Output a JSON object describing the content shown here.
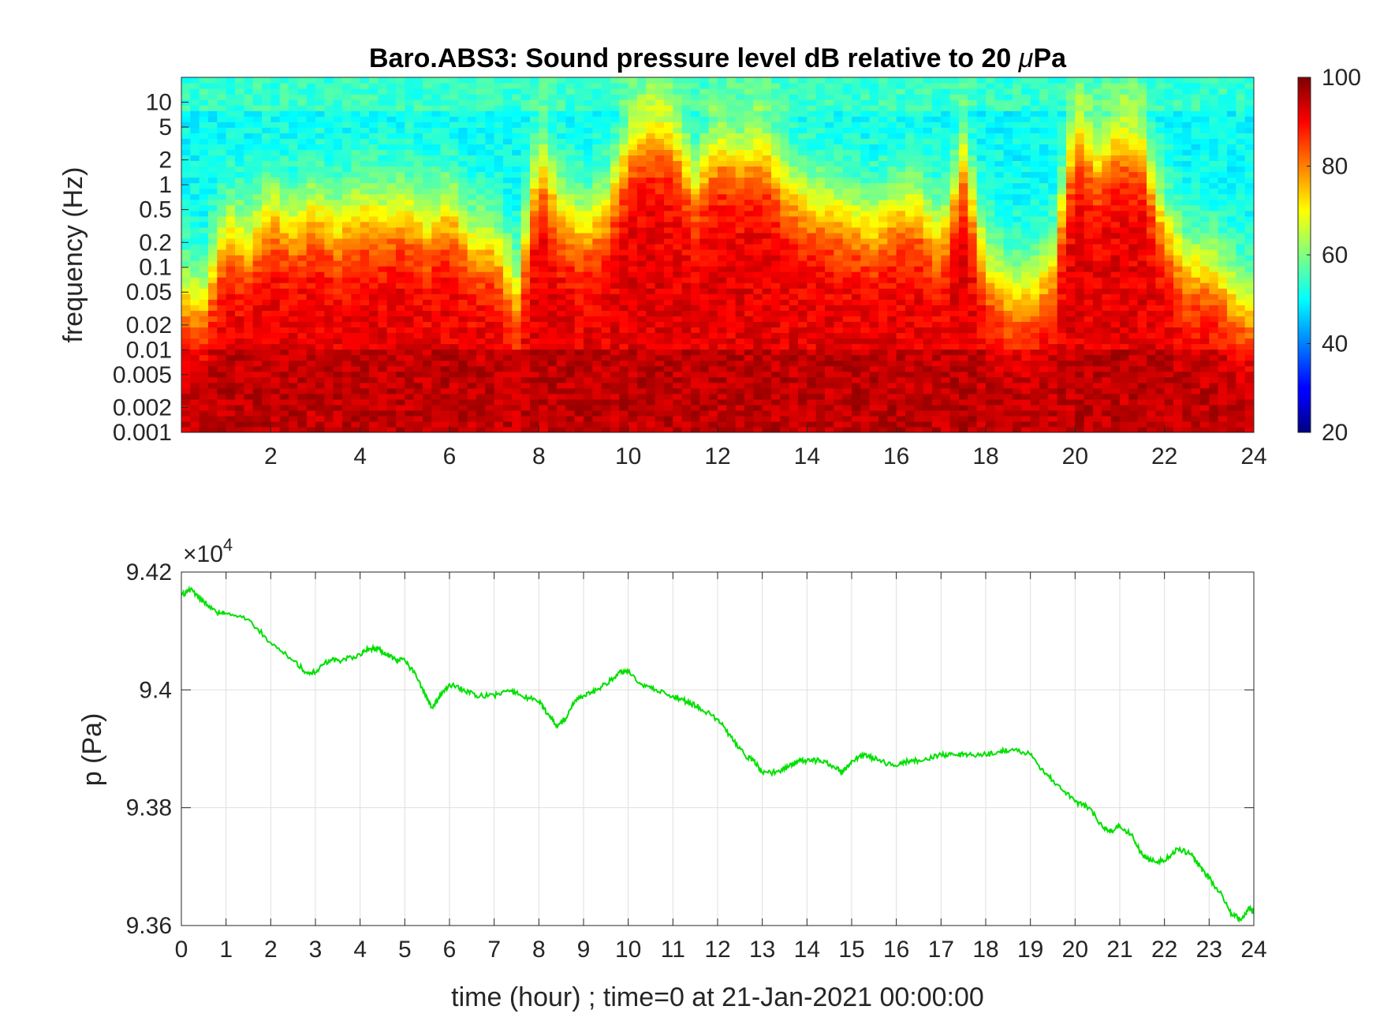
{
  "figure": {
    "title": "Baro.ABS3: Sound pressure level dB relative to 20 ",
    "title_mu": "μ",
    "title_unit": "Pa"
  },
  "chart_data": [
    {
      "type": "heatmap",
      "title": "Baro.ABS3: Sound pressure level dB relative to 20 μPa",
      "ylabel": "frequency (Hz)",
      "xlabel": "",
      "x_ticks": [
        "2",
        "4",
        "6",
        "8",
        "10",
        "12",
        "14",
        "16",
        "18",
        "20",
        "22",
        "24"
      ],
      "y_ticks": [
        "0.001",
        "0.002",
        "0.005",
        "0.01",
        "0.02",
        "0.05",
        "0.1",
        "0.2",
        "0.5",
        "1",
        "2",
        "5",
        "10"
      ],
      "xlim": [
        0,
        24
      ],
      "ylim": [
        0.001,
        20
      ],
      "y_scale": "log",
      "colormap": "jet",
      "colorbar": {
        "range": [
          20,
          100
        ],
        "ticks": [
          "20",
          "40",
          "60",
          "80",
          "100"
        ],
        "placement": "right"
      },
      "time_bins": [
        0,
        0.5,
        1,
        1.5,
        2,
        2.5,
        3,
        3.5,
        4,
        4.5,
        5,
        5.5,
        6,
        6.5,
        7,
        7.5,
        8,
        8.5,
        9,
        9.5,
        10,
        10.5,
        11,
        11.5,
        12,
        12.5,
        13,
        13.5,
        14,
        14.5,
        15,
        15.5,
        16,
        16.5,
        17,
        17.5,
        18,
        18.5,
        19,
        19.5,
        20,
        20.5,
        21,
        21.5,
        22,
        22.5,
        23,
        23.5,
        24
      ],
      "upper_freq_edge_hz": [
        0.05,
        0.04,
        0.3,
        0.2,
        0.5,
        0.3,
        0.5,
        0.3,
        0.5,
        0.4,
        0.5,
        0.3,
        0.5,
        0.2,
        0.2,
        0.05,
        2,
        0.5,
        0.3,
        0.5,
        3,
        5,
        4,
        1,
        3,
        2,
        3,
        1,
        0.6,
        0.5,
        0.4,
        0.3,
        0.5,
        0.5,
        0.2,
        2,
        0.1,
        0.05,
        0.05,
        0.1,
        5,
        2,
        4,
        3,
        0.3,
        0.1,
        0.1,
        0.05,
        0.03
      ],
      "low_band_level_db": 92,
      "high_band_level_db": 50,
      "grid": false
    },
    {
      "type": "line",
      "xlabel": "time (hour) ; time=0 at 21-Jan-2021 00:00:00",
      "ylabel": "p (Pa)",
      "y_multiplier": "×10",
      "y_multiplier_exp": "4",
      "x_ticks": [
        "0",
        "1",
        "2",
        "3",
        "4",
        "5",
        "6",
        "7",
        "8",
        "9",
        "10",
        "11",
        "12",
        "13",
        "14",
        "15",
        "16",
        "17",
        "18",
        "19",
        "20",
        "21",
        "22",
        "23",
        "24"
      ],
      "y_ticks": [
        "9.36",
        "9.38",
        "9.4",
        "9.42"
      ],
      "xlim": [
        0,
        24
      ],
      "ylim": [
        93600,
        94200
      ],
      "grid": true,
      "series": [
        {
          "color": "#00e000",
          "x": [
            0,
            0.2,
            0.5,
            0.8,
            1.0,
            1.5,
            2.0,
            2.5,
            2.8,
            3.0,
            3.3,
            3.6,
            4.0,
            4.2,
            4.4,
            4.6,
            4.8,
            5.0,
            5.2,
            5.4,
            5.6,
            5.8,
            6.0,
            6.3,
            6.6,
            7.0,
            7.3,
            7.6,
            8.0,
            8.2,
            8.4,
            8.6,
            8.8,
            9.0,
            9.2,
            9.5,
            9.8,
            10.0,
            10.3,
            10.6,
            11.0,
            11.3,
            11.6,
            12.0,
            12.3,
            12.6,
            12.8,
            13.0,
            13.3,
            13.6,
            13.8,
            14.0,
            14.3,
            14.6,
            14.8,
            15.0,
            15.3,
            15.6,
            16.0,
            16.3,
            16.6,
            17.0,
            17.3,
            17.6,
            18.0,
            18.3,
            18.6,
            19.0,
            19.3,
            19.6,
            20.0,
            20.3,
            20.6,
            20.8,
            21.0,
            21.3,
            21.5,
            21.7,
            22.0,
            22.3,
            22.6,
            22.8,
            23.0,
            23.3,
            23.5,
            23.7,
            23.9,
            24.0
          ],
          "y": [
            94160,
            94170,
            94150,
            94130,
            94130,
            94120,
            94080,
            94050,
            94030,
            94030,
            94050,
            94050,
            94060,
            94070,
            94070,
            94060,
            94050,
            94050,
            94030,
            94000,
            93970,
            93990,
            94010,
            94000,
            93990,
            93990,
            94000,
            93990,
            93980,
            93960,
            93940,
            93950,
            93980,
            93990,
            93995,
            94010,
            94030,
            94030,
            94010,
            94000,
            93990,
            93980,
            93970,
            93950,
            93920,
            93890,
            93880,
            93860,
            93860,
            93870,
            93880,
            93880,
            93880,
            93870,
            93860,
            93880,
            93890,
            93880,
            93870,
            93880,
            93880,
            93890,
            93890,
            93890,
            93890,
            93895,
            93900,
            93890,
            93860,
            93840,
            93810,
            93800,
            93770,
            93760,
            93770,
            93750,
            93720,
            93710,
            93710,
            93730,
            93720,
            93700,
            93680,
            93650,
            93620,
            93610,
            93630,
            93620
          ]
        }
      ]
    }
  ]
}
